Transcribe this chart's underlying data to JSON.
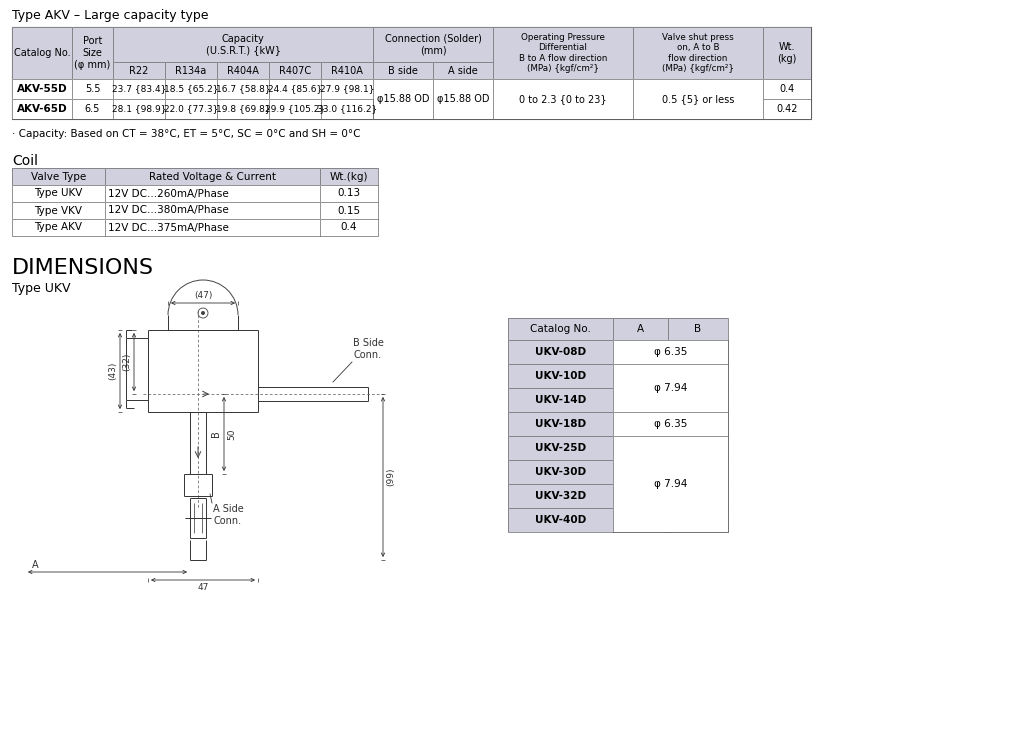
{
  "title1": "Type AKV – Large capacity type",
  "akv_note": "· Capacity: Based on CT = 38°C, ET = 5°C, SC = 0°C and SH = 0°C",
  "coil_title": "Coil",
  "coil_headers": [
    "Valve Type",
    "Rated Voltage & Current",
    "Wt.(kg)"
  ],
  "coil_rows": [
    [
      "Type UKV",
      "12V DC...260mA/Phase",
      "0.13"
    ],
    [
      "Type VKV",
      "12V DC...380mA/Phase",
      "0.15"
    ],
    [
      "Type AKV",
      "12V DC...375mA/Phase",
      "0.4"
    ]
  ],
  "dim_title": "DIMENSIONS",
  "dim_subtitle": "Type UKV",
  "akv_rows": [
    [
      "AKV-55D",
      "5.5",
      "23.7 {83.4}",
      "18.5 {65.2}",
      "16.7 {58.8}",
      "24.4 {85.6}",
      "27.9 {98.1}",
      "0.4"
    ],
    [
      "AKV-65D",
      "6.5",
      "28.1 {98.9}",
      "22.0 {77.3}",
      "19.8 {69.8}",
      "29.9 {105.2}",
      "33.0 {116.2}",
      "0.42"
    ]
  ],
  "ukv_catalog": [
    "UKV-08D",
    "UKV-10D",
    "UKV-14D",
    "UKV-18D",
    "UKV-25D",
    "UKV-30D",
    "UKV-32D",
    "UKV-40D"
  ],
  "ukv_ab_merged": [
    {
      "r0": 0,
      "r1": 0,
      "col": "AB",
      "val": "φ 6.35"
    },
    {
      "r0": 1,
      "r1": 2,
      "col": "AB",
      "val": "φ 7.94"
    },
    {
      "r0": 3,
      "r1": 3,
      "col": "AB",
      "val": "φ 6.35"
    },
    {
      "r0": 4,
      "r1": 7,
      "col": "AB",
      "val": "φ 7.94"
    }
  ],
  "header_bg": "#d0d0df",
  "white": "#ffffff",
  "line_color": "#444444",
  "text_color": "#000000",
  "bg_color": "#ffffff"
}
